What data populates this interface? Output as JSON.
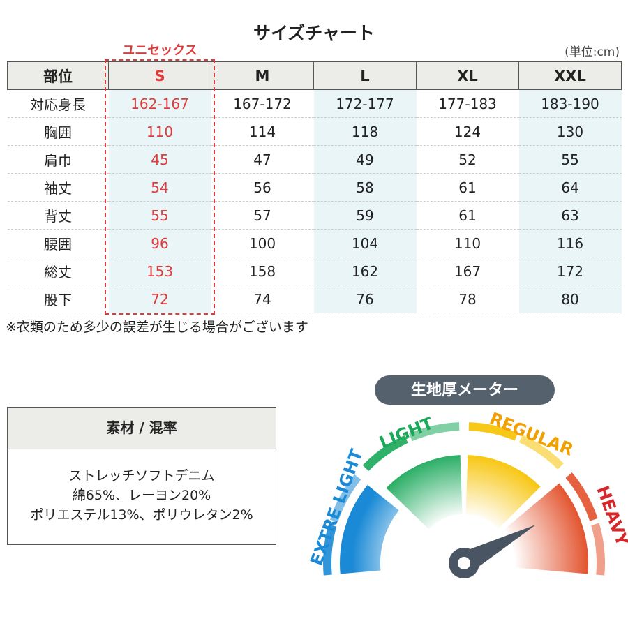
{
  "title": "サイズチャート",
  "unit": "(単位:cm)",
  "unisex_label": "ユニセックス",
  "table": {
    "header": [
      "部位",
      "S",
      "M",
      "L",
      "XL",
      "XXL"
    ],
    "rows": [
      [
        "対応身長",
        "162-167",
        "167-172",
        "172-177",
        "177-183",
        "183-190"
      ],
      [
        "胸囲",
        "110",
        "114",
        "118",
        "124",
        "130"
      ],
      [
        "肩巾",
        "45",
        "47",
        "49",
        "52",
        "55"
      ],
      [
        "袖丈",
        "54",
        "56",
        "58",
        "61",
        "64"
      ],
      [
        "背丈",
        "55",
        "57",
        "59",
        "61",
        "63"
      ],
      [
        "腰囲",
        "96",
        "100",
        "104",
        "110",
        "116"
      ],
      [
        "総丈",
        "153",
        "158",
        "162",
        "167",
        "172"
      ],
      [
        "股下",
        "72",
        "74",
        "76",
        "78",
        "80"
      ]
    ]
  },
  "note": "※衣類のため多少の誤差が生じる場合がございます",
  "material": {
    "title": "素材 / 混率",
    "lines": [
      "ストレッチソフトデニム",
      "綿65%、レーヨン20%",
      "ポリエステル13%、ポリウレタン2%"
    ]
  },
  "meter": {
    "title": "生地厚メーター",
    "labels": [
      "EXTRE LIGHT",
      "LIGHT",
      "REGULAR",
      "HEAVY"
    ]
  }
}
